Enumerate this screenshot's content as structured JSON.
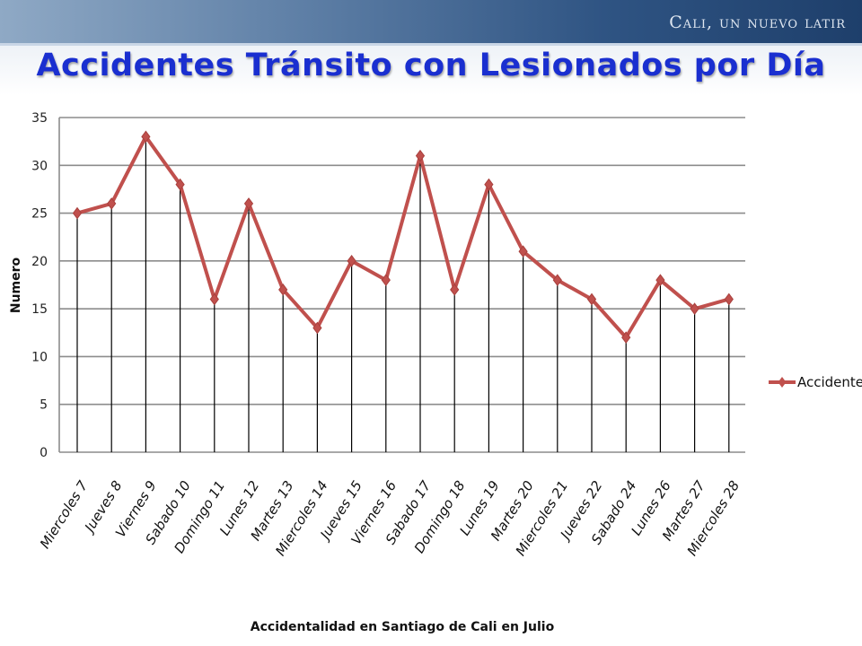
{
  "header": {
    "brand": "Cali, un nuevo latir",
    "title": "Accidentes Tránsito con Lesionados por Día"
  },
  "chart_data": {
    "type": "line",
    "title": "",
    "xlabel": "Accidentalidad en Santiago de Cali  en Julio",
    "ylabel": "Numero",
    "ylim": [
      0,
      35
    ],
    "yticks": [
      0,
      5,
      10,
      15,
      20,
      25,
      30,
      35
    ],
    "grid": true,
    "drop_lines": true,
    "legend_position": "right",
    "categories": [
      "Miercoles 7",
      "Jueves 8",
      "Viernes 9",
      "Sabado 10",
      "Domingo 11",
      "Lunes 12",
      "Martes 13",
      "Miercoles 14",
      "Jueves 15",
      "Viernes 16",
      "Sabado 17",
      "Domingo 18",
      "Lunes 19",
      "Martes 20",
      "Miercoles 21",
      "Jueves 22",
      "Sabado 24",
      "Lunes 26",
      "Martes 27",
      "Miercoles 28"
    ],
    "series": [
      {
        "name": "Accidentes",
        "color": "#c0504d",
        "values": [
          25,
          26,
          33,
          28,
          16,
          26,
          17,
          13,
          20,
          18,
          31,
          17,
          28,
          21,
          18,
          16,
          12,
          18,
          15,
          16
        ]
      }
    ]
  }
}
